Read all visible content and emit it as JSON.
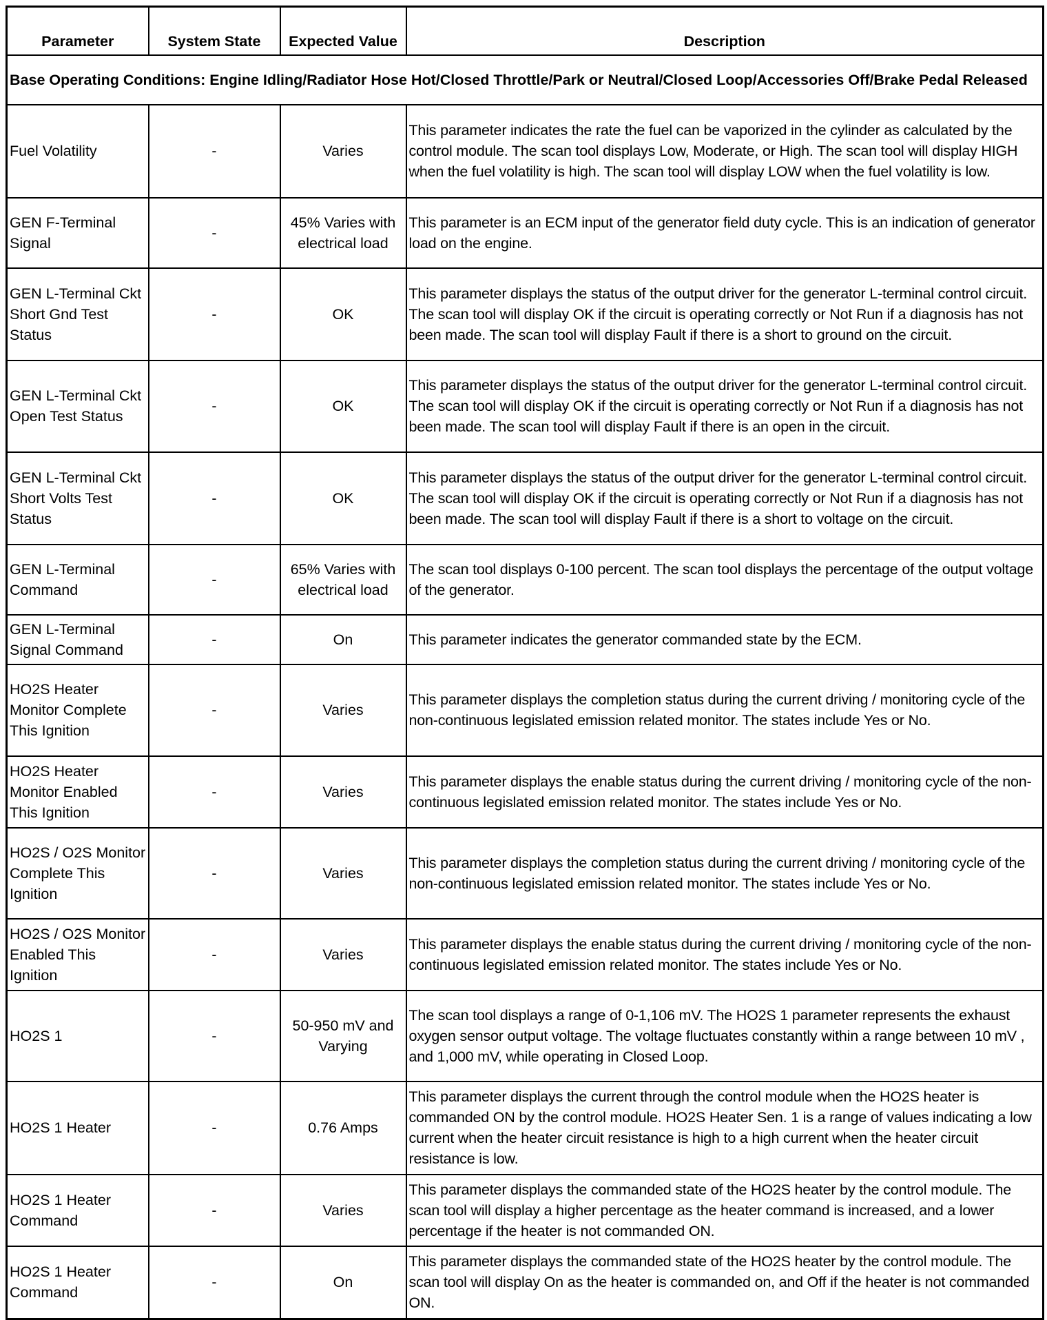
{
  "headers": [
    "Parameter",
    "System State",
    "Expected Value",
    "Description"
  ],
  "base_conditions": "Base Operating Conditions: Engine Idling/Radiator Hose Hot/Closed Throttle/Park or Neutral/Closed Loop/Accessories Off/Brake Pedal Released",
  "rows": [
    {
      "parameter": "Fuel Volatility",
      "state": "-",
      "expected": "Varies",
      "description": "This parameter indicates the rate the fuel can be vaporized in the cylinder as calculated by the control module. The scan tool displays Low, Moderate, or High. The scan tool will display HIGH when the fuel volatility is high. The scan tool will display LOW when the fuel volatility is low."
    },
    {
      "parameter": "GEN F-Terminal Signal",
      "state": "-",
      "expected": "45% Varies with electrical load",
      "description": "This parameter is an ECM input of the generator field duty cycle. This is an indication of generator load on the engine."
    },
    {
      "parameter": "GEN L-Terminal Ckt Short Gnd Test Status",
      "state": "-",
      "expected": "OK",
      "description": "This parameter displays the status of the output driver for the generator L-terminal control circuit. The scan tool will display OK if the circuit is operating correctly or Not Run if a diagnosis has not been made. The scan tool will display Fault if there is a short to ground on the circuit."
    },
    {
      "parameter": "GEN L-Terminal Ckt Open Test Status",
      "state": "-",
      "expected": "OK",
      "description": "This parameter displays the status of the output driver for the generator L-terminal control circuit. The scan tool will display OK if the circuit is operating correctly or Not Run if a diagnosis has not been made. The scan tool will display Fault if there is an open in the circuit."
    },
    {
      "parameter": "GEN L-Terminal Ckt Short Volts Test Status",
      "state": "-",
      "expected": "OK",
      "description": "This parameter displays the status of the output driver for the generator L-terminal control circuit. The scan tool will display OK if the circuit is operating correctly or Not Run if a diagnosis has not been made. The scan tool will display Fault if there is a short to voltage on the circuit."
    },
    {
      "parameter": "GEN L-Terminal Command",
      "state": "-",
      "expected": "65% Varies with electrical load",
      "description": "The scan tool displays 0-100 percent. The scan tool displays the percentage of the output voltage of the generator."
    },
    {
      "parameter": "GEN L-Terminal Signal Command",
      "state": "-",
      "expected": "On",
      "description": "This parameter indicates the generator commanded state by the ECM."
    },
    {
      "parameter": "HO2S Heater Monitor Complete This Ignition",
      "state": "-",
      "expected": "Varies",
      "description": "This parameter displays the completion status during the current driving / monitoring cycle of the non-continuous legislated emission related monitor. The states include Yes or No."
    },
    {
      "parameter": "HO2S Heater Monitor Enabled This Ignition",
      "state": "-",
      "expected": "Varies",
      "description": "This parameter displays the enable status during the current driving / monitoring cycle of the non-continuous legislated emission related monitor. The states include Yes or No."
    },
    {
      "parameter": "HO2S / O2S Monitor Complete This Ignition",
      "state": "-",
      "expected": "Varies",
      "description": "This parameter displays the completion status during the current driving / monitoring cycle of the non-continuous legislated emission related monitor. The states include Yes or No."
    },
    {
      "parameter": "HO2S / O2S Monitor Enabled This Ignition",
      "state": "-",
      "expected": "Varies",
      "description": "This parameter displays the enable status during the current driving / monitoring cycle of the non-continuous legislated emission related monitor. The states include Yes or No."
    },
    {
      "parameter": "HO2S 1",
      "state": "-",
      "expected": "50-950 mV and Varying",
      "description": "The scan tool displays a range of 0-1,106 mV. The HO2S 1 parameter represents the exhaust oxygen sensor output voltage. The voltage fluctuates constantly within a range between 10 mV , and 1,000 mV, while operating in Closed Loop."
    },
    {
      "parameter": "HO2S 1 Heater",
      "state": "-",
      "expected": "0.76 Amps",
      "description": "This parameter displays the current through the control module when the HO2S heater is commanded ON by the control module. HO2S Heater Sen. 1 is a range of values indicating a low current when the heater circuit resistance is high to a high current when the heater circuit resistance is low."
    },
    {
      "parameter": "HO2S 1 Heater Command",
      "state": "-",
      "expected": "Varies",
      "description": "This parameter displays the commanded state of the HO2S heater by the control module. The scan tool will display a higher percentage as the heater command is increased, and a lower percentage if the heater is not commanded ON."
    },
    {
      "parameter": "HO2S 1 Heater Command",
      "state": "-",
      "expected": "On",
      "description": "This parameter displays the commanded state of the HO2S heater by the control module. The scan tool will display On as the heater is commanded on, and Off if the heater is not commanded ON."
    }
  ]
}
